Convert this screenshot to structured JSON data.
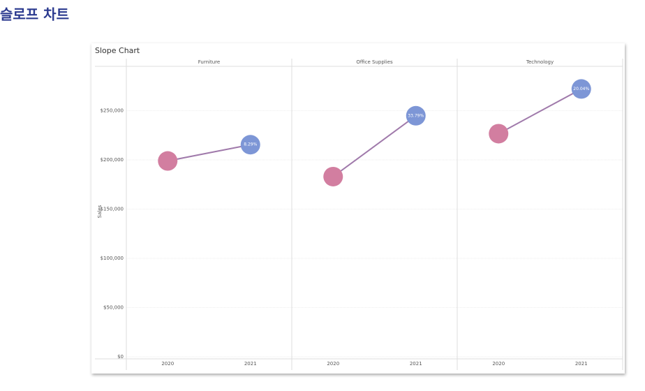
{
  "heading": "슬로프 차트",
  "chart_data": {
    "type": "slope",
    "title": "Slope Chart",
    "y_label": "Sales",
    "categories": [
      "2020",
      "2021"
    ],
    "colors": [
      "#d27ea0",
      "#7d96d6"
    ],
    "line_color": "#a07aab",
    "ylim": [
      0,
      295000
    ],
    "yticks": [
      {
        "value": 0,
        "label": "$0"
      },
      {
        "value": 50000,
        "label": "$50,000"
      },
      {
        "value": 100000,
        "label": "$100,000"
      },
      {
        "value": 150000,
        "label": "$150,000"
      },
      {
        "value": 200000,
        "label": "$200,000"
      },
      {
        "value": 250000,
        "label": "$250,000"
      }
    ],
    "grid": true,
    "panels": [
      {
        "name": "Furniture",
        "values": [
          198900,
          215400
        ],
        "value_labels": [
          null,
          "8.29%"
        ]
      },
      {
        "name": "Office Supplies",
        "values": [
          183000,
          244800
        ],
        "value_labels": [
          null,
          "33.79%"
        ]
      },
      {
        "name": "Technology",
        "values": [
          226600,
          272000
        ],
        "value_labels": [
          null,
          "20.04%"
        ]
      }
    ]
  }
}
